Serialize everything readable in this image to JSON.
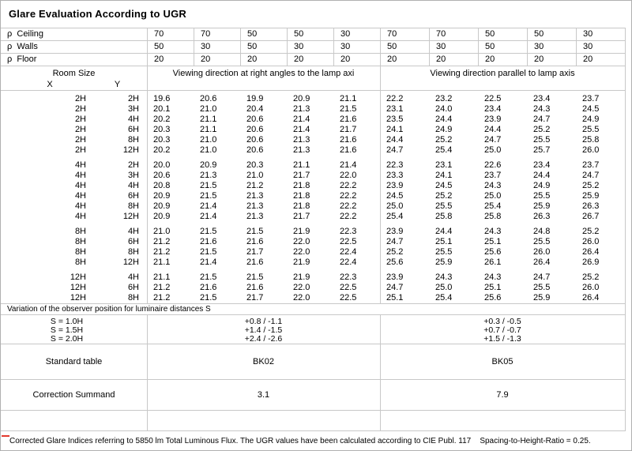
{
  "title": "Glare Evaluation According to UGR",
  "headers": {
    "room_size": "Room Size",
    "x": "X",
    "y": "Y",
    "right_angles": "Viewing direction at right angles to the lamp axi",
    "parallel": "Viewing direction parallel to lamp axis"
  },
  "reflectances": [
    {
      "label": "ρ  Ceiling",
      "values": [
        "70",
        "70",
        "50",
        "50",
        "30",
        "70",
        "70",
        "50",
        "50",
        "30"
      ]
    },
    {
      "label": "ρ  Walls",
      "values": [
        "50",
        "30",
        "50",
        "30",
        "30",
        "50",
        "30",
        "50",
        "30",
        "30"
      ]
    },
    {
      "label": "ρ  Floor",
      "values": [
        "20",
        "20",
        "20",
        "20",
        "20",
        "20",
        "20",
        "20",
        "20",
        "20"
      ]
    }
  ],
  "groups": [
    [
      [
        "2H",
        "2H",
        "19.6",
        "20.6",
        "19.9",
        "20.9",
        "21.1",
        "22.2",
        "23.2",
        "22.5",
        "23.4",
        "23.7"
      ],
      [
        "2H",
        "3H",
        "20.1",
        "21.0",
        "20.4",
        "21.3",
        "21.5",
        "23.1",
        "24.0",
        "23.4",
        "24.3",
        "24.5"
      ],
      [
        "2H",
        "4H",
        "20.2",
        "21.1",
        "20.6",
        "21.4",
        "21.6",
        "23.5",
        "24.4",
        "23.9",
        "24.7",
        "24.9"
      ],
      [
        "2H",
        "6H",
        "20.3",
        "21.1",
        "20.6",
        "21.4",
        "21.7",
        "24.1",
        "24.9",
        "24.4",
        "25.2",
        "25.5"
      ],
      [
        "2H",
        "8H",
        "20.3",
        "21.0",
        "20.6",
        "21.3",
        "21.6",
        "24.4",
        "25.2",
        "24.7",
        "25.5",
        "25.8"
      ],
      [
        "2H",
        "12H",
        "20.2",
        "21.0",
        "20.6",
        "21.3",
        "21.6",
        "24.7",
        "25.4",
        "25.0",
        "25.7",
        "26.0"
      ]
    ],
    [
      [
        "4H",
        "2H",
        "20.0",
        "20.9",
        "20.3",
        "21.1",
        "21.4",
        "22.3",
        "23.1",
        "22.6",
        "23.4",
        "23.7"
      ],
      [
        "4H",
        "3H",
        "20.6",
        "21.3",
        "21.0",
        "21.7",
        "22.0",
        "23.3",
        "24.1",
        "23.7",
        "24.4",
        "24.7"
      ],
      [
        "4H",
        "4H",
        "20.8",
        "21.5",
        "21.2",
        "21.8",
        "22.2",
        "23.9",
        "24.5",
        "24.3",
        "24.9",
        "25.2"
      ],
      [
        "4H",
        "6H",
        "20.9",
        "21.5",
        "21.3",
        "21.8",
        "22.2",
        "24.5",
        "25.2",
        "25.0",
        "25.5",
        "25.9"
      ],
      [
        "4H",
        "8H",
        "20.9",
        "21.4",
        "21.3",
        "21.8",
        "22.2",
        "25.0",
        "25.5",
        "25.4",
        "25.9",
        "26.3"
      ],
      [
        "4H",
        "12H",
        "20.9",
        "21.4",
        "21.3",
        "21.7",
        "22.2",
        "25.4",
        "25.8",
        "25.8",
        "26.3",
        "26.7"
      ]
    ],
    [
      [
        "8H",
        "4H",
        "21.0",
        "21.5",
        "21.5",
        "21.9",
        "22.3",
        "23.9",
        "24.4",
        "24.3",
        "24.8",
        "25.2"
      ],
      [
        "8H",
        "6H",
        "21.2",
        "21.6",
        "21.6",
        "22.0",
        "22.5",
        "24.7",
        "25.1",
        "25.1",
        "25.5",
        "26.0"
      ],
      [
        "8H",
        "8H",
        "21.2",
        "21.5",
        "21.7",
        "22.0",
        "22.4",
        "25.2",
        "25.5",
        "25.6",
        "26.0",
        "26.4"
      ],
      [
        "8H",
        "12H",
        "21.1",
        "21.4",
        "21.6",
        "21.9",
        "22.4",
        "25.6",
        "25.9",
        "26.1",
        "26.4",
        "26.9"
      ]
    ],
    [
      [
        "12H",
        "4H",
        "21.1",
        "21.5",
        "21.5",
        "21.9",
        "22.3",
        "23.9",
        "24.3",
        "24.3",
        "24.7",
        "25.2"
      ],
      [
        "12H",
        "6H",
        "21.2",
        "21.6",
        "21.6",
        "22.0",
        "22.5",
        "24.7",
        "25.0",
        "25.1",
        "25.5",
        "26.0"
      ],
      [
        "12H",
        "8H",
        "21.2",
        "21.5",
        "21.7",
        "22.0",
        "22.5",
        "25.1",
        "25.4",
        "25.6",
        "25.9",
        "26.4"
      ]
    ]
  ],
  "observer_note": "Variation of the observer position for luminaire distances S",
  "observer_rows": [
    {
      "label": "S = 1.0H",
      "right_angles": "+0.8 / -1.1",
      "parallel": "+0.3 / -0.5"
    },
    {
      "label": "S = 1.5H",
      "right_angles": "+1.4 / -1.5",
      "parallel": "+0.7 / -0.7"
    },
    {
      "label": "S = 2.0H",
      "right_angles": "+2.4 / -2.6",
      "parallel": "+1.5 / -1.3"
    }
  ],
  "standard_table": {
    "label": "Standard table",
    "right_angles": "BK02",
    "parallel": "BK05"
  },
  "correction_summand": {
    "label": "Correction Summand",
    "right_angles": "3.1",
    "parallel": "7.9"
  },
  "footer": "Corrected Glare Indices referring to 5850 lm Total Luminous Flux. The UGR values have been calculated according to CIE Publ. 117    Spacing-to-Height-Ratio = 0.25.",
  "colors": {
    "grid_line": "#c8c8c8",
    "page_border": "#b0b0b0",
    "page_marker": "#e23a2e",
    "text": "#000000"
  }
}
